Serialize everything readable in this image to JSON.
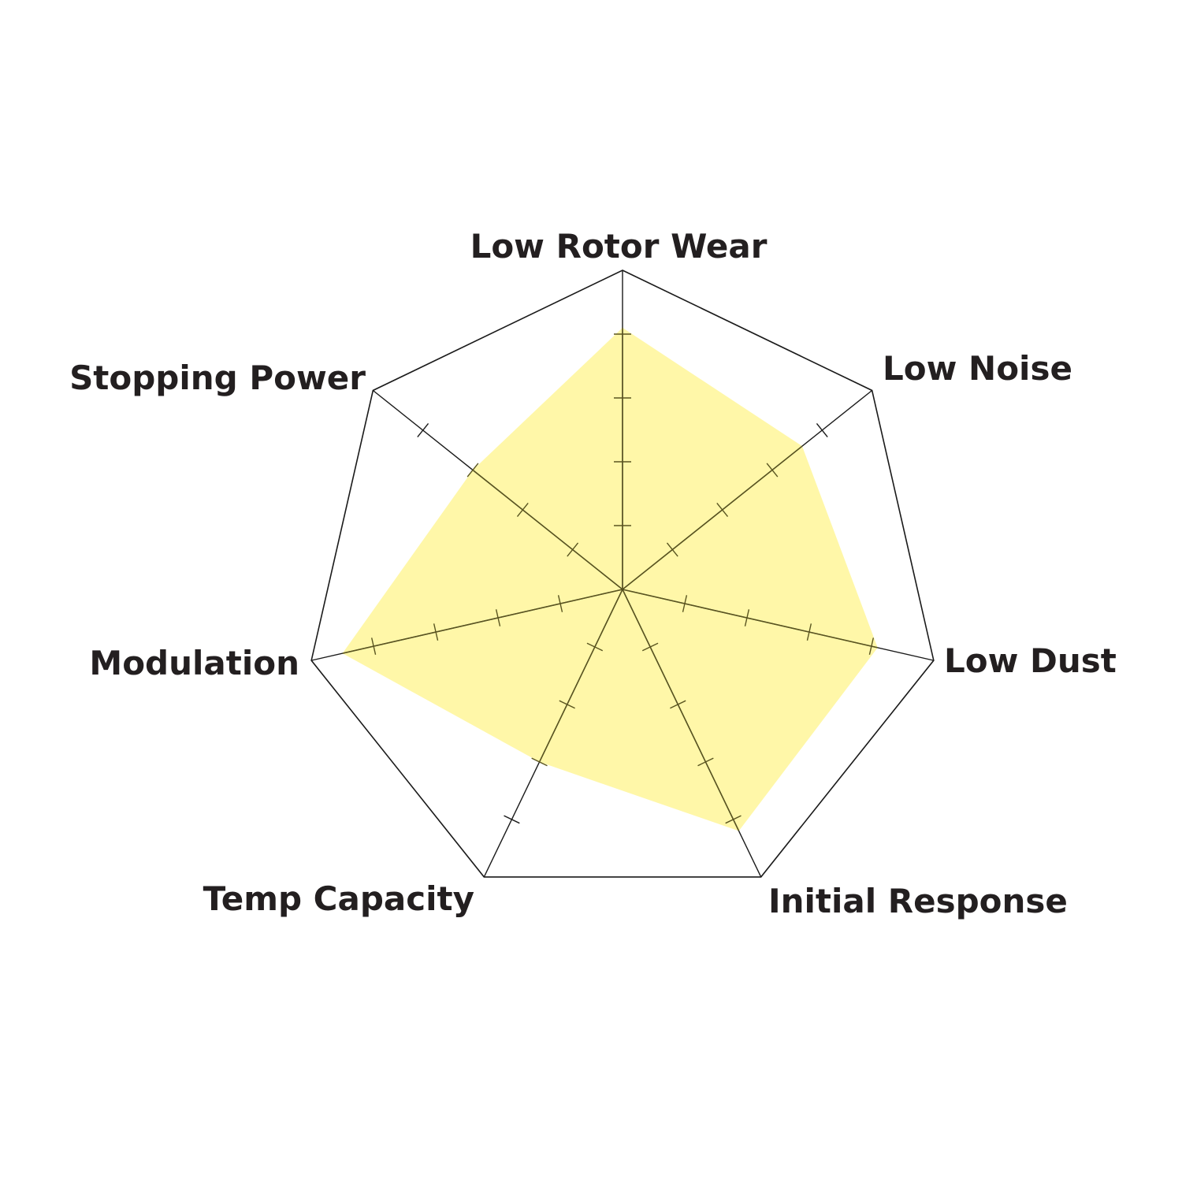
{
  "chart_data": {
    "type": "radar",
    "axes": [
      "Low Rotor Wear",
      "Low Noise",
      "Low Dust",
      "Initial Response",
      "Temp Capacity",
      "Modulation",
      "Stopping Power"
    ],
    "values": [
      4.1,
      3.6,
      4.1,
      4.2,
      3.0,
      4.5,
      3.0
    ],
    "range": [
      0,
      5
    ],
    "tick_step": 1,
    "grid": "outer heptagon with tick marks on spokes",
    "legend": "none",
    "colors": {
      "fill": "#fff7a8",
      "outline": "#1a1a1a",
      "spoke": "#5a5520",
      "label": "#231f20"
    }
  }
}
